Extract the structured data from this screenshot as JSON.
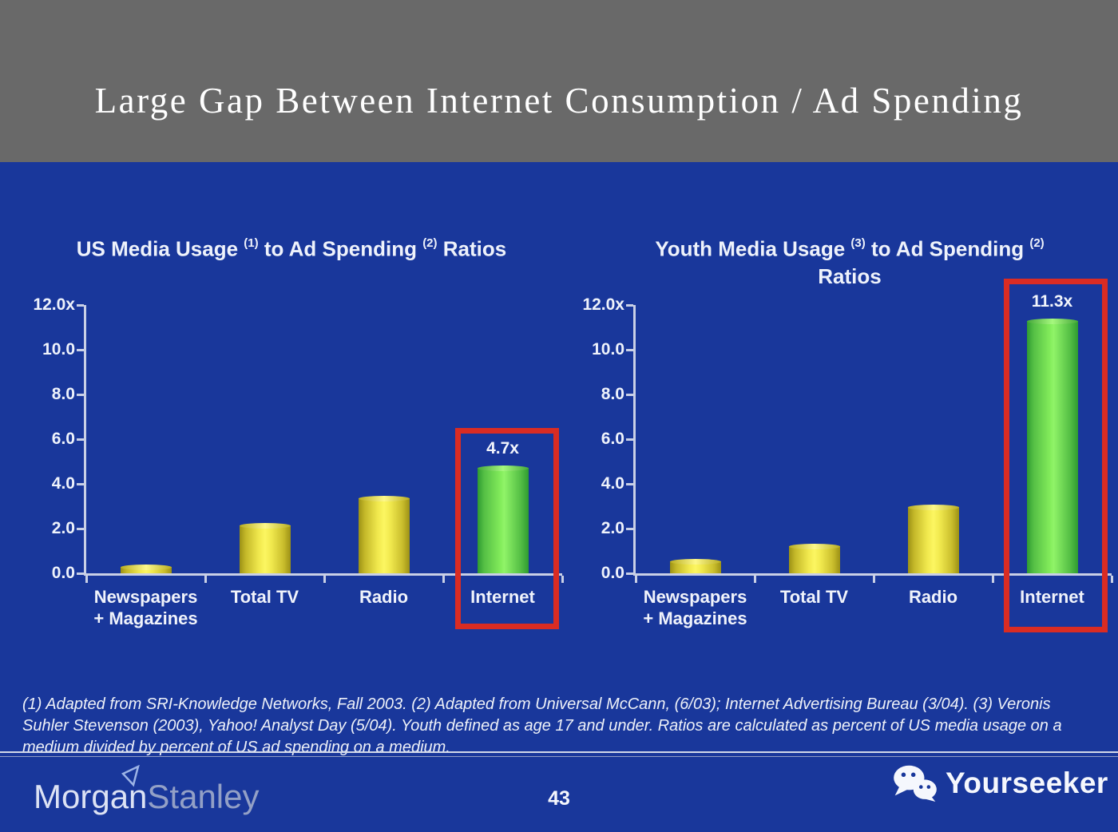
{
  "header": {
    "title": "Large Gap Between Internet Consumption / Ad Spending"
  },
  "chart_data": [
    {
      "type": "bar",
      "title": "US Media Usage (1) to Ad Spending (2) Ratios",
      "title_lines": [
        [
          {
            "text": "US Media Usage "
          },
          {
            "sup": "(1)"
          },
          {
            "text": " to Ad Spending "
          },
          {
            "sup": "(2)"
          },
          {
            "text": " Ratios"
          }
        ]
      ],
      "categories": [
        "Newspapers + Magazines",
        "Total TV",
        "Radio",
        "Internet"
      ],
      "category_lines": [
        [
          "Newspapers",
          "+ Magazines"
        ],
        [
          "Total TV"
        ],
        [
          "Radio"
        ],
        [
          "Internet"
        ]
      ],
      "values": [
        0.3,
        2.15,
        3.35,
        4.7
      ],
      "bar_colors": [
        "yellow",
        "yellow",
        "yellow",
        "green"
      ],
      "highlight": {
        "index": 3,
        "label": "4.7x"
      },
      "y_ticks": [
        "12.0x",
        "10.0",
        "8.0",
        "6.0",
        "4.0",
        "2.0",
        "0.0"
      ],
      "ylim": [
        0,
        12
      ],
      "xlabel": "",
      "ylabel": "",
      "grid": false,
      "legend": "none"
    },
    {
      "type": "bar",
      "title": "Youth Media Usage (3) to Ad Spending (2) Ratios",
      "title_lines": [
        [
          {
            "text": "Youth Media Usage "
          },
          {
            "sup": "(3)"
          },
          {
            "text": " to Ad Spending "
          },
          {
            "sup": "(2)"
          }
        ],
        [
          {
            "text": "Ratios"
          }
        ]
      ],
      "categories": [
        "Newspapers + Magazines",
        "Total TV",
        "Radio",
        "Internet"
      ],
      "category_lines": [
        [
          "Newspapers",
          "+ Magazines"
        ],
        [
          "Total TV"
        ],
        [
          "Radio"
        ],
        [
          "Internet"
        ]
      ],
      "values": [
        0.55,
        1.2,
        2.95,
        11.3
      ],
      "bar_colors": [
        "yellow",
        "yellow",
        "yellow",
        "green"
      ],
      "highlight": {
        "index": 3,
        "label": "11.3x"
      },
      "y_ticks": [
        "12.0x",
        "10.0",
        "8.0",
        "6.0",
        "4.0",
        "2.0",
        "0.0"
      ],
      "ylim": [
        0,
        12
      ],
      "xlabel": "",
      "ylabel": "",
      "grid": false,
      "legend": "none"
    }
  ],
  "footnote": {
    "text": "(1) Adapted from SRI-Knowledge Networks, Fall 2003.  (2) Adapted from Universal McCann, (6/03); Internet Advertising Bureau (3/04). (3) Veronis Suhler Stevenson (2003), Yahoo! Analyst Day (5/04).  Youth defined as age 17 and under.  Ratios are calculated as percent of US media usage on a medium divided by percent of US ad spending on a medium."
  },
  "footer": {
    "logo_part1": "Morgan",
    "logo_part2": "Stanley",
    "page_number": "43",
    "brand": "Yourseeker",
    "brand_icon": "wechat-icon"
  },
  "colors": {
    "header_gray": "#696969",
    "background_blue": "#19379b",
    "bar_yellow": "#fcf661",
    "bar_green": "#83ec5b",
    "highlight_red": "#da2c23",
    "axis_light": "#c9d0e6"
  }
}
